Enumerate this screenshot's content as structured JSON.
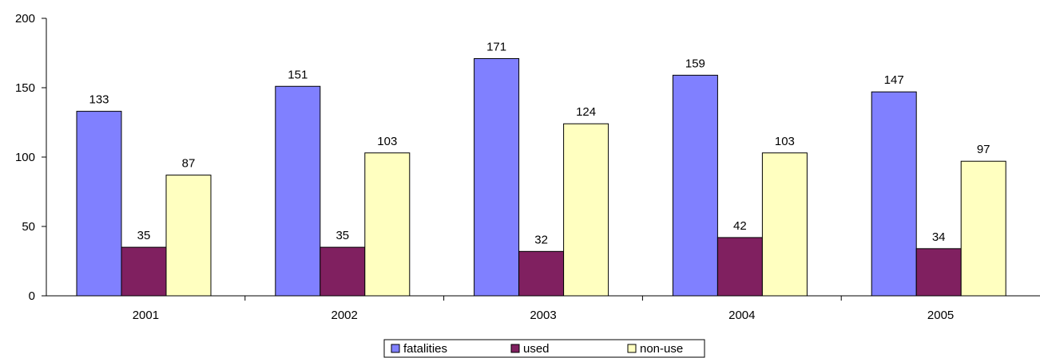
{
  "chart_data": {
    "type": "bar",
    "categories": [
      "2001",
      "2002",
      "2003",
      "2004",
      "2005"
    ],
    "series": [
      {
        "name": "fatalities",
        "color": "#8080ff",
        "values": [
          133,
          151,
          171,
          159,
          147
        ]
      },
      {
        "name": "used",
        "color": "#802060",
        "values": [
          35,
          35,
          32,
          42,
          34
        ]
      },
      {
        "name": "non-use",
        "color": "#ffffc0",
        "values": [
          87,
          103,
          124,
          103,
          97
        ]
      }
    ],
    "ylim": [
      0,
      200
    ],
    "yticks": [
      0,
      50,
      100,
      150,
      200
    ],
    "grid": false,
    "legend_position": "bottom"
  }
}
